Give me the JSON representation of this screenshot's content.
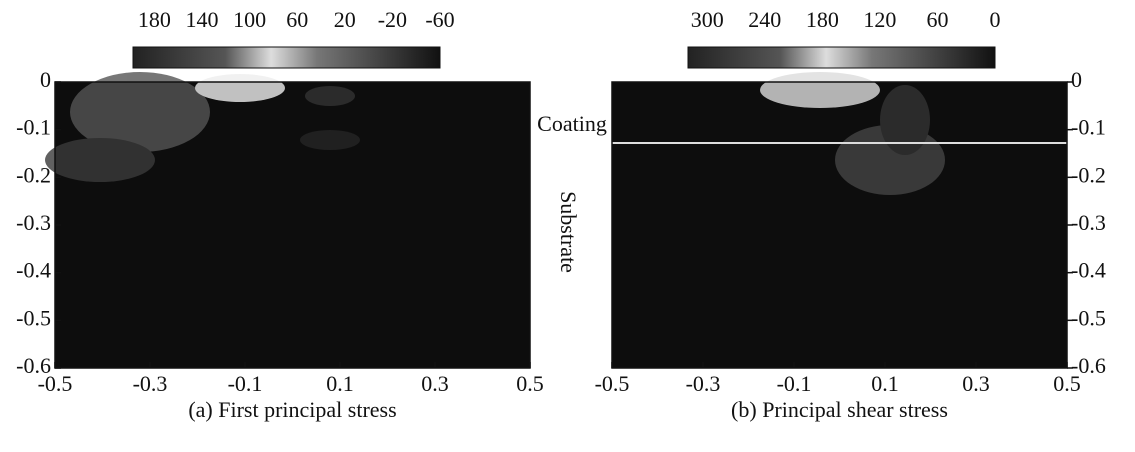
{
  "chart_data": [
    {
      "type": "heatmap",
      "caption": "(a) First principal stress",
      "xlim": [
        -0.5,
        0.5
      ],
      "xticks": [
        -0.5,
        -0.3,
        -0.1,
        0.1,
        0.3,
        0.5
      ],
      "ylim": [
        -0.6,
        0
      ],
      "yticks": [
        0,
        -0.1,
        -0.2,
        -0.3,
        -0.4,
        -0.5,
        -0.6
      ],
      "y_axis_side": "left",
      "colorbar": {
        "clim": [
          198,
          -60
        ],
        "ticks": [
          180,
          140,
          100,
          60,
          20,
          -20,
          -60
        ]
      }
    },
    {
      "type": "heatmap",
      "caption": "(b) Principal shear stress",
      "xlim": [
        -0.5,
        0.5
      ],
      "xticks": [
        -0.5,
        -0.3,
        -0.1,
        0.1,
        0.3,
        0.5
      ],
      "ylim": [
        -0.6,
        0
      ],
      "yticks": [
        0,
        -0.1,
        -0.2,
        -0.3,
        -0.4,
        -0.5,
        -0.6
      ],
      "y_axis_side": "right",
      "colorbar": {
        "clim": [
          320,
          0
        ],
        "ticks": [
          300,
          240,
          180,
          120,
          60,
          0
        ]
      },
      "annotations": [
        "Coating",
        "Substrate"
      ]
    }
  ]
}
